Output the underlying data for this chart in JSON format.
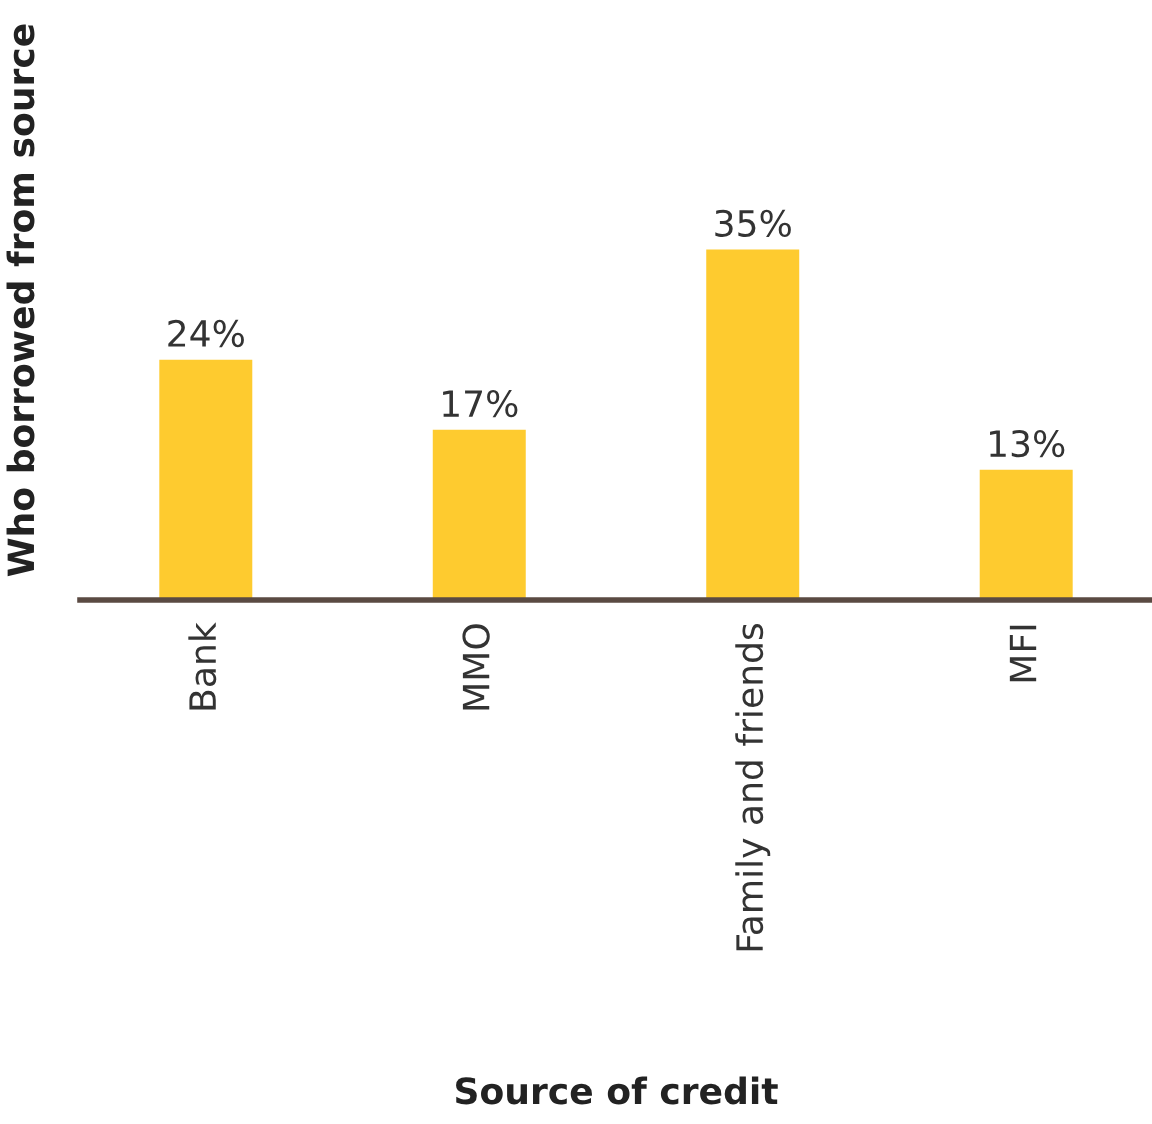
{
  "chart_data": {
    "type": "bar",
    "xlabel": "Source of credit",
    "ylabel": "Who borrowed from source",
    "categories": [
      "Bank",
      "MMO",
      "Family and friends",
      "MFI"
    ],
    "values": [
      24,
      17,
      35,
      13
    ],
    "value_labels": [
      "24%",
      "17%",
      "35%",
      "13%"
    ],
    "color": "#fecb2f",
    "grid": false,
    "legend": false,
    "tick_labels": "x"
  }
}
